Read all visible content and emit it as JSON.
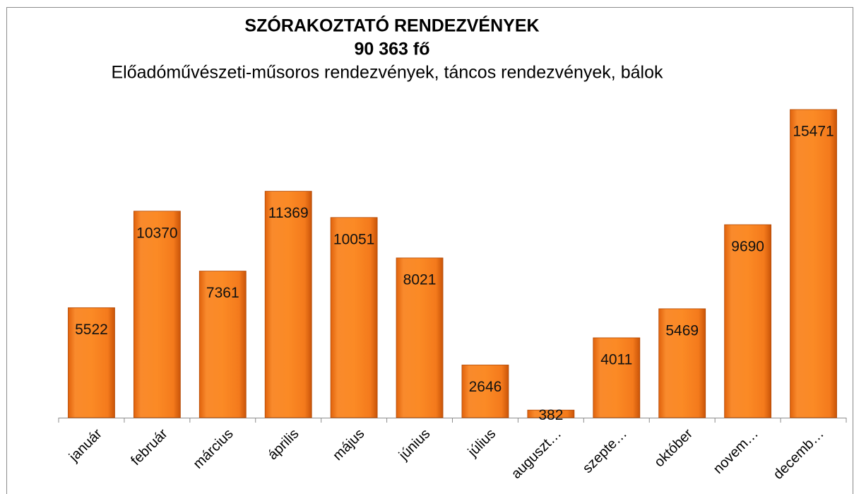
{
  "chart_data": {
    "type": "bar",
    "title": "SZÓRAKOZTATÓ RENDEZVÉNYEK",
    "subtitle": "90 363 fő",
    "description": "Előadóművészeti-műsoros rendezvények, táncos rendezvények, bálok",
    "categories": [
      "január",
      "február",
      "március",
      "április",
      "május",
      "június",
      "július",
      "auguszt…",
      "szepte…",
      "október",
      "novem…",
      "decemb…"
    ],
    "values": [
      5522,
      10370,
      7361,
      11369,
      10051,
      8021,
      2646,
      382,
      4011,
      5469,
      9690,
      15471
    ],
    "color": "#f47a1c"
  }
}
